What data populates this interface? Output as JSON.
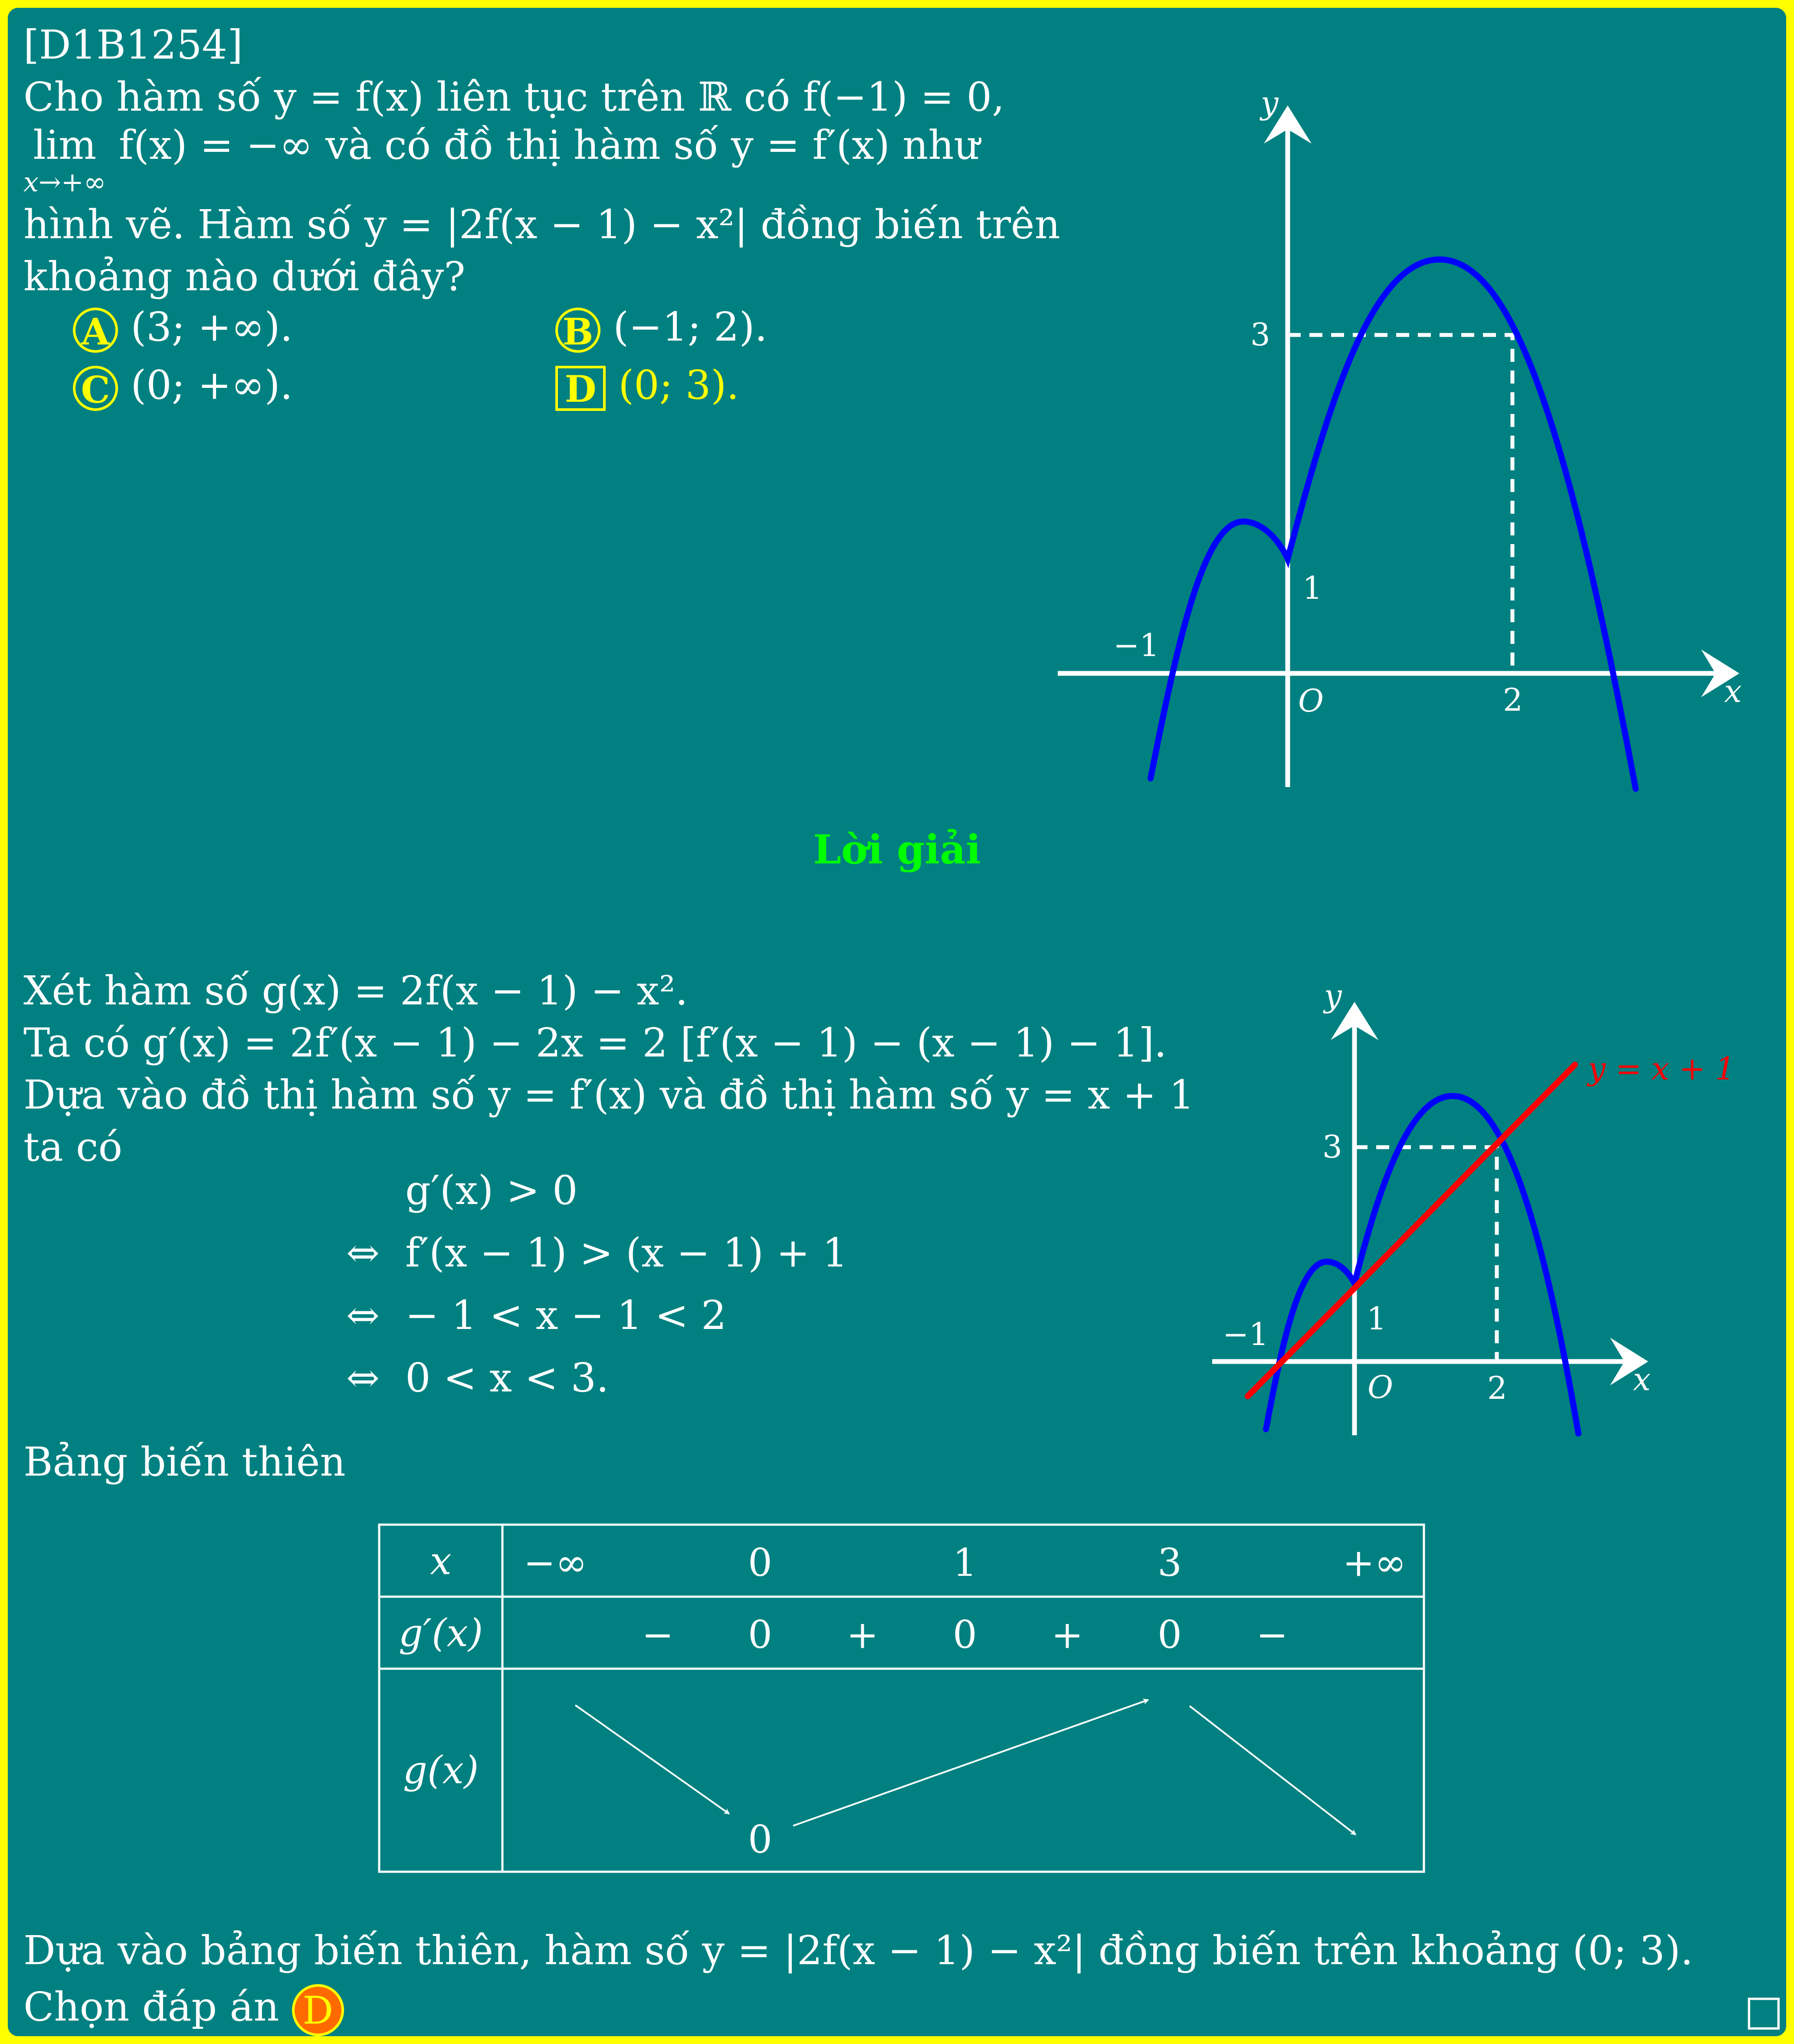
{
  "problem": {
    "id": "[D1B1254]",
    "line1": "Cho hàm số y = f(x) liên tục trên ℝ có f(−1) = 0,",
    "line2_lim": "lim",
    "line2_sub": "x→+∞",
    "line2_rest": " f(x) = −∞ và có đồ thị hàm số y = f′(x) như",
    "line3": "hình vẽ. Hàm số y = |2f(x − 1) − x²| đồng biến trên",
    "line4": "khoảng nào dưới đây?"
  },
  "options": [
    {
      "letter": "A",
      "text": "(3; +∞)."
    },
    {
      "letter": "B",
      "text": "(−1; 2)."
    },
    {
      "letter": "C",
      "text": "(0; +∞)."
    },
    {
      "letter": "D",
      "text": "(0; 3)."
    }
  ],
  "graph1": {
    "y_label": "y",
    "x_label": "x",
    "origin": "O",
    "tick_3": "3",
    "tick_1": "1",
    "tick_m1": "−1",
    "tick_2": "2",
    "curve_color": "#0000ff",
    "axis_color": "#ffffff"
  },
  "solution": {
    "title": "Lời giải",
    "title_color": "#00ff00",
    "line1": "Xét hàm số g(x) = 2f(x − 1) − x².",
    "line2": "Ta có g′(x) = 2f′(x − 1) − 2x = 2 [f′(x − 1) − (x − 1) − 1].",
    "line3": "Dựa vào đồ thị hàm số y = f′(x) và đồ thị hàm số y = x + 1",
    "line4": "ta có",
    "eq1": "g′(x) > 0",
    "eq2_sym": "⇔",
    "eq2": "f′(x − 1) > (x − 1) + 1",
    "eq3_sym": "⇔",
    "eq3": "− 1 < x − 1 < 2",
    "eq4_sym": "⇔",
    "eq4": "0 < x < 3.",
    "table_intro": "Bảng biến thiên",
    "conclusion": "Dựa vào bảng biến thiên, hàm số y = |2f(x − 1) − x²| đồng biến trên khoảng (0; 3).",
    "choose": "Chọn đáp án",
    "answer": "D",
    "end_mark": "□"
  },
  "graph2": {
    "y_label": "y",
    "x_label": "x",
    "origin": "O",
    "tick_3": "3",
    "tick_1": "1",
    "tick_m1": "−1",
    "tick_2": "2",
    "line_label": "y = x + 1",
    "line_color": "#ff0000",
    "curve_color": "#0000ff"
  },
  "table": {
    "row_x_label": "x",
    "x_values": [
      "−∞",
      "0",
      "1",
      "3",
      "+∞"
    ],
    "row_deriv_label": "g′(x)",
    "deriv_signs": [
      "−",
      "0",
      "+",
      "0",
      "+",
      "0",
      "−"
    ],
    "row_func_label": "g(x)",
    "func_min_value": "0"
  }
}
